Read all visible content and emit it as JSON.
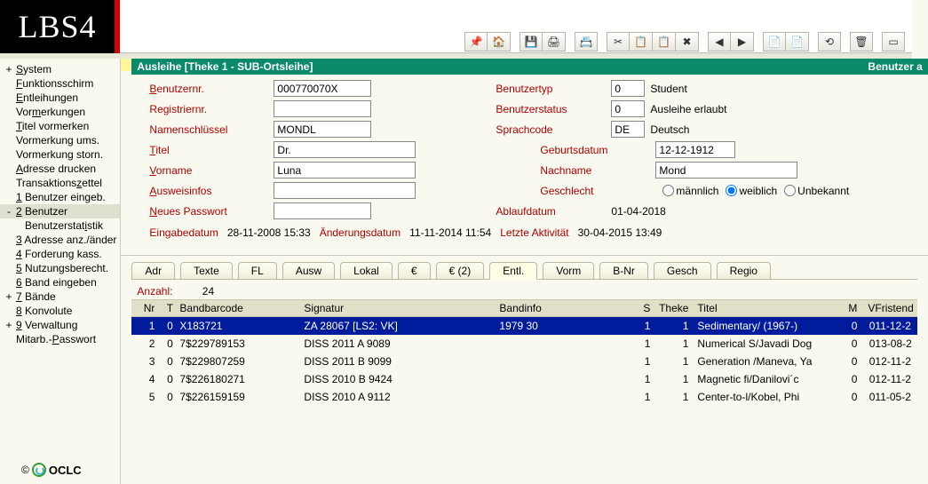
{
  "logo": "LBS4",
  "toolbar_icons": [
    "📌",
    "🏠",
    "|",
    "💾",
    "🖨",
    "|",
    "📇",
    "|",
    "✂",
    "📋",
    "📋",
    "✖",
    "|",
    "◀",
    "▶",
    "|",
    "📄",
    "📄",
    "|",
    "⟲",
    "|",
    "🗑",
    "|",
    "▭"
  ],
  "greenbar": {
    "title": "Ausleihe [Theke 1 - SUB-Ortsleihe]",
    "right": "Benutzer a"
  },
  "sidebar": {
    "items": [
      {
        "exp": "+",
        "label": "System",
        "u": "S"
      },
      {
        "exp": "",
        "label": "Funktionsschirm",
        "u": "F"
      },
      {
        "exp": "",
        "label": "Entleihungen",
        "u": "E"
      },
      {
        "exp": "",
        "label": "Vormerkungen",
        "u": "m"
      },
      {
        "exp": "",
        "label": "Titel vormerken",
        "u": "T"
      },
      {
        "exp": "",
        "label": "Vormerkung ums.",
        "u": ""
      },
      {
        "exp": "",
        "label": "Vormerkung storn.",
        "u": ""
      },
      {
        "exp": "",
        "label": "Adresse drucken",
        "u": "A"
      },
      {
        "exp": "",
        "label": "Transaktionszettel",
        "u": "z"
      },
      {
        "exp": "",
        "label": "1 Benutzer eingeb.",
        "u": "1"
      },
      {
        "exp": "-",
        "label": "2 Benutzer",
        "u": "2",
        "sel": true
      },
      {
        "exp": "",
        "label": "Benutzerstatistik",
        "u": "i",
        "indent": true
      },
      {
        "exp": "",
        "label": "3 Adresse anz./änder",
        "u": "3"
      },
      {
        "exp": "",
        "label": "4 Forderung kass.",
        "u": "4"
      },
      {
        "exp": "",
        "label": "5 Nutzungsberecht.",
        "u": "5"
      },
      {
        "exp": "",
        "label": "6 Band eingeben",
        "u": "6"
      },
      {
        "exp": "+",
        "label": "7 Bände",
        "u": "7"
      },
      {
        "exp": "",
        "label": "8 Konvolute",
        "u": "8"
      },
      {
        "exp": "+",
        "label": "9 Verwaltung",
        "u": "9"
      },
      {
        "exp": "",
        "label": "Mitarb.-Passwort",
        "u": "P"
      }
    ]
  },
  "form": {
    "left": [
      {
        "label": "Benutzernr.",
        "u": "B",
        "value": "000770070X",
        "w": "sm"
      },
      {
        "label": "Registriernr.",
        "u": "",
        "value": "",
        "w": "sm"
      },
      {
        "label": "Namenschlüssel",
        "u": "",
        "value": "MONDL",
        "w": "sm"
      },
      {
        "label": "Titel",
        "u": "T",
        "value": "Dr.",
        "w": "md"
      },
      {
        "label": "Vorname",
        "u": "V",
        "value": "Luna",
        "w": "md"
      },
      {
        "label": "Ausweisinfos",
        "u": "A",
        "value": "",
        "w": "md"
      },
      {
        "label": "Neues Passwort",
        "u": "N",
        "value": "",
        "w": "sm"
      }
    ],
    "right": [
      {
        "label": "Benutzertyp",
        "u": "",
        "value": "0",
        "after": "Student",
        "kind": "num"
      },
      {
        "label": "Benutzerstatus",
        "u": "e",
        "value": "0",
        "after": "Ausleihe erlaubt",
        "kind": "num"
      },
      {
        "label": "Sprachcode",
        "u": "S",
        "value": "DE",
        "after": "Deutsch",
        "kind": "code"
      },
      {
        "label": "Geburtsdatum",
        "u": "G",
        "value": "12-12-1912",
        "kind": "date"
      },
      {
        "label": "Nachname",
        "u": "N",
        "value": "Mond",
        "kind": "text"
      },
      {
        "label": "Geschlecht",
        "u": "",
        "kind": "radio",
        "options": [
          "männlich",
          "weiblich",
          "Unbekannt"
        ],
        "selected": 1
      },
      {
        "label": "Ablaufdatum",
        "u": "",
        "value": "01-04-2018",
        "kind": "static"
      }
    ],
    "dateline": [
      {
        "k": "Eingabedatum",
        "v": "28-11-2008 15:33"
      },
      {
        "k": "Änderungsdatum",
        "v": "11-11-2014 11:54"
      },
      {
        "k": "Letzte Aktivität",
        "v": "30-04-2015 13:49"
      }
    ]
  },
  "tabs": [
    "Adr",
    "Texte",
    "FL",
    "Ausw",
    "Lokal",
    "€",
    "€ (2)",
    "Entl.",
    "Vorm",
    "B-Nr",
    "Gesch",
    "Regio"
  ],
  "active_tab": 7,
  "count": {
    "label": "Anzahl:",
    "value": "24"
  },
  "grid": {
    "cols": [
      "Nr",
      "T",
      "Bandbarcode",
      "Signatur",
      "Bandinfo",
      "S",
      "Theke",
      "Titel",
      "M",
      "V",
      "Fristend"
    ],
    "rows": [
      {
        "nr": "1",
        "t": "0",
        "bc": "X183721",
        "sig": "ZA 28067 [LS2: VK]",
        "bi": "1979 30",
        "s": "1",
        "th": "1",
        "ti": "Sedimentary/ (1967-)",
        "m": "0",
        "v": "0",
        "fr": "11-12-2",
        "sel": true
      },
      {
        "nr": "2",
        "t": "0",
        "bc": "7$229789153",
        "sig": "DISS 2011 A 9089",
        "bi": "",
        "s": "1",
        "th": "1",
        "ti": "Numerical S/Javadi Dog",
        "m": "0",
        "v": "0",
        "fr": "13-08-2"
      },
      {
        "nr": "3",
        "t": "0",
        "bc": "7$229807259",
        "sig": "DISS 2011 B 9099",
        "bi": "",
        "s": "1",
        "th": "1",
        "ti": "Generation /Maneva, Ya",
        "m": "0",
        "v": "0",
        "fr": "12-11-2"
      },
      {
        "nr": "4",
        "t": "0",
        "bc": "7$226180271",
        "sig": "DISS 2010 B 9424",
        "bi": "",
        "s": "1",
        "th": "1",
        "ti": "Magnetic fi/Danilovi´c",
        "m": "0",
        "v": "0",
        "fr": "12-11-2"
      },
      {
        "nr": "5",
        "t": "0",
        "bc": "7$226159159",
        "sig": "DISS 2010 A 9112",
        "bi": "",
        "s": "1",
        "th": "1",
        "ti": "Center-to-l/Kobel, Phi",
        "m": "0",
        "v": "0",
        "fr": "11-05-2"
      }
    ]
  },
  "footer": "OCLC"
}
